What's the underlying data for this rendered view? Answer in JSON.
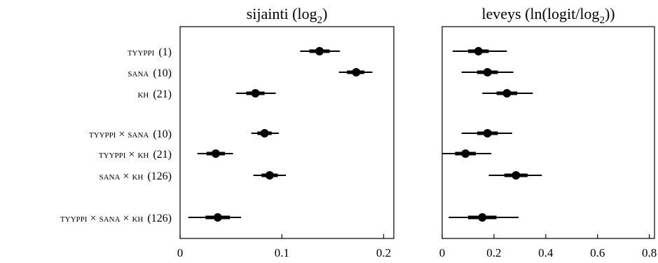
{
  "chart_data": [
    {
      "type": "forest",
      "title": "sijainti (log2)",
      "title_main": "sijainti (log",
      "title_sub": "2",
      "title_tail": ")",
      "xlim": [
        0,
        0.21
      ],
      "xticks": [
        0,
        0.1,
        0.2
      ],
      "xtick_labels": [
        "0",
        "0.1",
        "0.2"
      ],
      "grid": false,
      "rows": [
        {
          "term": "tyyppi",
          "df": "(1)",
          "median": 0.137,
          "inner": [
            0.127,
            0.147
          ],
          "outer": [
            0.118,
            0.157
          ]
        },
        {
          "term": "sana",
          "df": "(10)",
          "median": 0.173,
          "inner": [
            0.164,
            0.181
          ],
          "outer": [
            0.156,
            0.189
          ]
        },
        {
          "term": "kh",
          "df": "(21)",
          "median": 0.074,
          "inner": [
            0.065,
            0.083
          ],
          "outer": [
            0.055,
            0.094
          ]
        },
        {
          "term": "tyyppi × sana",
          "df": "(10)",
          "median": 0.083,
          "inner": [
            0.076,
            0.09
          ],
          "outer": [
            0.07,
            0.097
          ]
        },
        {
          "term": "tyyppi × kh",
          "df": "(21)",
          "median": 0.035,
          "inner": [
            0.026,
            0.044
          ],
          "outer": [
            0.017,
            0.052
          ]
        },
        {
          "term": "sana × kh",
          "df": "(126)",
          "median": 0.088,
          "inner": [
            0.08,
            0.096
          ],
          "outer": [
            0.072,
            0.104
          ]
        },
        {
          "term": "tyyppi × sana × kh",
          "df": "(126)",
          "median": 0.037,
          "inner": [
            0.025,
            0.049
          ],
          "outer": [
            0.008,
            0.06
          ]
        }
      ]
    },
    {
      "type": "forest",
      "title": "leveys (ln(logit/log2))",
      "title_main": "leveys (ln(logit/log",
      "title_sub": "2",
      "title_tail": "))",
      "xlim": [
        0,
        0.82
      ],
      "xticks": [
        0,
        0.2,
        0.4,
        0.6,
        0.8
      ],
      "xtick_labels": [
        "0",
        "0.2",
        "0.4",
        "0.6",
        "0.8"
      ],
      "grid": false,
      "rows": [
        {
          "median": 0.14,
          "inner": [
            0.1,
            0.18
          ],
          "outer": [
            0.04,
            0.25
          ]
        },
        {
          "median": 0.175,
          "inner": [
            0.135,
            0.215
          ],
          "outer": [
            0.075,
            0.275
          ]
        },
        {
          "median": 0.25,
          "inner": [
            0.21,
            0.29
          ],
          "outer": [
            0.155,
            0.35
          ]
        },
        {
          "median": 0.175,
          "inner": [
            0.135,
            0.215
          ],
          "outer": [
            0.075,
            0.27
          ]
        },
        {
          "median": 0.09,
          "inner": [
            0.05,
            0.13
          ],
          "outer": [
            0.0,
            0.19
          ]
        },
        {
          "median": 0.285,
          "inner": [
            0.24,
            0.33
          ],
          "outer": [
            0.18,
            0.385
          ]
        },
        {
          "median": 0.155,
          "inner": [
            0.1,
            0.21
          ],
          "outer": [
            0.025,
            0.295
          ]
        }
      ]
    }
  ]
}
